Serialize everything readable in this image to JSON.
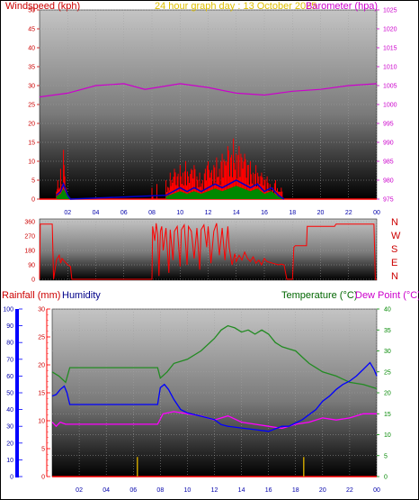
{
  "header": {
    "windspeed_label": "Windspeed (kph)",
    "graph_title": "24 hour graph day : 13 October 2025",
    "barometer_label": "Barometer (hpa)",
    "rainfall_label": "Rainfall (mm)",
    "humidity_label": "Humidity",
    "temperature_label": "Temperature (°C)",
    "dewpoint_label": "Dew Point (°C)"
  },
  "colors": {
    "wind": "#ff0000",
    "gust": "#ff0000",
    "baro": "#cc00cc",
    "avg_wind": "#0000cc",
    "wind_green": "#008800",
    "direction": "#ff0000",
    "temperature": "#228b22",
    "humidity": "#0000ff",
    "dewpoint": "#ff00ff",
    "rain_bar": "#c8a000",
    "rain_axis_text": "#ff0000",
    "humidity_axis_text": "#0000aa",
    "temp_axis_text": "#008800",
    "baro_axis_text": "#cc00cc",
    "title_text": "#e0c000"
  },
  "chart_data": [
    {
      "type": "bar",
      "name": "wind",
      "x_ticks": [
        "02",
        "04",
        "06",
        "08",
        "10",
        "12",
        "14",
        "16",
        "18",
        "20",
        "22",
        "00"
      ],
      "y_left_ticks": [
        "0",
        "5",
        "10",
        "15",
        "20",
        "25",
        "30",
        "35",
        "40",
        "45",
        "50"
      ],
      "y_right_ticks": [
        "975",
        "980",
        "985",
        "990",
        "995",
        "1000",
        "1005",
        "1010",
        "1015",
        "1020",
        "1025"
      ],
      "ylim_left": [
        0,
        50
      ],
      "ylim_right": [
        975,
        1025
      ],
      "x_range_hours": [
        0,
        24
      ],
      "gust_kph": [
        [
          0,
          0
        ],
        [
          1.0,
          0
        ],
        [
          1.2,
          2
        ],
        [
          1.3,
          5
        ],
        [
          1.4,
          3
        ],
        [
          1.5,
          8
        ],
        [
          1.6,
          4
        ],
        [
          1.7,
          13
        ],
        [
          1.75,
          9
        ],
        [
          1.8,
          6
        ],
        [
          1.9,
          3
        ],
        [
          2.0,
          1
        ],
        [
          2.2,
          0
        ],
        [
          2.5,
          0
        ],
        [
          7.9,
          0
        ],
        [
          8.0,
          3
        ],
        [
          8.1,
          0
        ],
        [
          8.3,
          0
        ],
        [
          8.35,
          4
        ],
        [
          8.4,
          0
        ],
        [
          8.9,
          0
        ],
        [
          9.0,
          5
        ],
        [
          9.2,
          3
        ],
        [
          9.3,
          7
        ],
        [
          9.4,
          5
        ],
        [
          9.6,
          8
        ],
        [
          9.8,
          6
        ],
        [
          10.0,
          9
        ],
        [
          10.2,
          7
        ],
        [
          10.4,
          10
        ],
        [
          10.6,
          6
        ],
        [
          10.8,
          8
        ],
        [
          11.0,
          9
        ],
        [
          11.2,
          6
        ],
        [
          11.4,
          7
        ],
        [
          11.6,
          5
        ],
        [
          11.8,
          8
        ],
        [
          12.0,
          10
        ],
        [
          12.2,
          7
        ],
        [
          12.4,
          9
        ],
        [
          12.6,
          11
        ],
        [
          12.8,
          8
        ],
        [
          13.0,
          12
        ],
        [
          13.2,
          10
        ],
        [
          13.4,
          14
        ],
        [
          13.6,
          11
        ],
        [
          13.8,
          16
        ],
        [
          14.0,
          12
        ],
        [
          14.2,
          14
        ],
        [
          14.4,
          11
        ],
        [
          14.6,
          12
        ],
        [
          14.8,
          9
        ],
        [
          15.0,
          10
        ],
        [
          15.2,
          7
        ],
        [
          15.4,
          9
        ],
        [
          15.6,
          6
        ],
        [
          15.8,
          7
        ],
        [
          16.0,
          5
        ],
        [
          16.2,
          6
        ],
        [
          16.4,
          4
        ],
        [
          16.6,
          3
        ],
        [
          16.8,
          5
        ],
        [
          17.0,
          2
        ],
        [
          17.2,
          3
        ],
        [
          17.4,
          0
        ],
        [
          17.6,
          0
        ],
        [
          24,
          0
        ]
      ],
      "avg_kph": [
        [
          1.2,
          1
        ],
        [
          1.5,
          2
        ],
        [
          1.7,
          4
        ],
        [
          1.8,
          3
        ],
        [
          2.0,
          1
        ],
        [
          2.2,
          0
        ],
        [
          9.0,
          1
        ],
        [
          9.5,
          2
        ],
        [
          10.0,
          3
        ],
        [
          10.5,
          2
        ],
        [
          11.0,
          3
        ],
        [
          11.5,
          2
        ],
        [
          12.0,
          3
        ],
        [
          12.5,
          4
        ],
        [
          13.0,
          3
        ],
        [
          13.5,
          4
        ],
        [
          14.0,
          5
        ],
        [
          14.5,
          4
        ],
        [
          15.0,
          3
        ],
        [
          15.5,
          4
        ],
        [
          16.0,
          2
        ],
        [
          16.5,
          3
        ],
        [
          17.0,
          1
        ],
        [
          17.4,
          0
        ]
      ],
      "barometer_hpa": [
        [
          0,
          1002
        ],
        [
          2,
          1003
        ],
        [
          4,
          1005
        ],
        [
          6,
          1005.5
        ],
        [
          7.5,
          1004
        ],
        [
          10,
          1005.5
        ],
        [
          12,
          1004.5
        ],
        [
          14,
          1003
        ],
        [
          16,
          1002.5
        ],
        [
          18,
          1003.5
        ],
        [
          20,
          1004
        ],
        [
          22,
          1005
        ],
        [
          24,
          1005.5
        ]
      ]
    },
    {
      "type": "line",
      "name": "wind_direction",
      "y_ticks": [
        "0",
        "90",
        "180",
        "270",
        "360"
      ],
      "right_labels": [
        "N",
        "W",
        "S",
        "E",
        "N"
      ],
      "ylim": [
        0,
        360
      ],
      "direction_deg": [
        [
          0,
          0
        ],
        [
          0.05,
          345
        ],
        [
          0.9,
          345
        ],
        [
          1.0,
          0
        ],
        [
          1.2,
          120
        ],
        [
          1.4,
          150
        ],
        [
          1.5,
          100
        ],
        [
          1.6,
          130
        ],
        [
          1.8,
          110
        ],
        [
          2.0,
          90
        ],
        [
          2.2,
          80
        ],
        [
          2.3,
          0
        ],
        [
          8.0,
          0
        ],
        [
          8.05,
          330
        ],
        [
          8.2,
          240
        ],
        [
          8.3,
          350
        ],
        [
          8.4,
          280
        ],
        [
          8.5,
          20
        ],
        [
          8.6,
          300
        ],
        [
          8.7,
          330
        ],
        [
          8.8,
          180
        ],
        [
          9.0,
          320
        ],
        [
          9.2,
          40
        ],
        [
          9.3,
          310
        ],
        [
          9.5,
          120
        ],
        [
          9.6,
          300
        ],
        [
          9.8,
          330
        ],
        [
          10.0,
          80
        ],
        [
          10.1,
          310
        ],
        [
          10.3,
          340
        ],
        [
          10.5,
          90
        ],
        [
          10.6,
          330
        ],
        [
          10.8,
          300
        ],
        [
          11.0,
          130
        ],
        [
          11.2,
          320
        ],
        [
          11.4,
          60
        ],
        [
          11.5,
          310
        ],
        [
          11.7,
          340
        ],
        [
          11.9,
          200
        ],
        [
          12.0,
          330
        ],
        [
          12.2,
          100
        ],
        [
          12.4,
          300
        ],
        [
          12.6,
          350
        ],
        [
          12.8,
          150
        ],
        [
          13.0,
          320
        ],
        [
          13.2,
          120
        ],
        [
          13.4,
          330
        ],
        [
          13.5,
          200
        ],
        [
          13.7,
          90
        ],
        [
          13.9,
          160
        ],
        [
          14.0,
          110
        ],
        [
          14.2,
          150
        ],
        [
          14.4,
          120
        ],
        [
          14.6,
          170
        ],
        [
          14.8,
          130
        ],
        [
          15.0,
          110
        ],
        [
          15.2,
          140
        ],
        [
          15.4,
          100
        ],
        [
          15.6,
          120
        ],
        [
          15.8,
          90
        ],
        [
          16.0,
          130
        ],
        [
          16.2,
          110
        ],
        [
          16.6,
          100
        ],
        [
          17.0,
          90
        ],
        [
          17.2,
          95
        ],
        [
          17.4,
          90
        ],
        [
          17.6,
          0
        ],
        [
          18.0,
          0
        ],
        [
          18.1,
          200
        ],
        [
          18.2,
          210
        ],
        [
          19.0,
          210
        ],
        [
          19.05,
          330
        ],
        [
          21.0,
          330
        ],
        [
          21.1,
          345
        ],
        [
          23.8,
          345
        ],
        [
          23.9,
          0
        ],
        [
          24,
          0
        ]
      ]
    },
    {
      "type": "line",
      "name": "temp_hum",
      "x_ticks": [
        "02",
        "04",
        "06",
        "08",
        "10",
        "12",
        "14",
        "16",
        "18",
        "20",
        "22",
        "00"
      ],
      "y_left_humidity_ticks": [
        "0",
        "10",
        "20",
        "30",
        "40",
        "50",
        "60",
        "70",
        "80",
        "90",
        "100"
      ],
      "y_left_rain_ticks": [
        "0",
        "5",
        "10",
        "15",
        "20",
        "25",
        "30"
      ],
      "y_right_temp_ticks": [
        "0",
        "5",
        "10",
        "15",
        "20",
        "25",
        "30",
        "35",
        "40"
      ],
      "humidity_lim": [
        0,
        100
      ],
      "rain_lim": [
        0,
        30
      ],
      "temp_lim": [
        0,
        40
      ],
      "temperature_c": [
        [
          0,
          25
        ],
        [
          0.5,
          24
        ],
        [
          1.0,
          22.5
        ],
        [
          1.3,
          26
        ],
        [
          2,
          26
        ],
        [
          4,
          26
        ],
        [
          6,
          26
        ],
        [
          7.8,
          26
        ],
        [
          8.0,
          23.5
        ],
        [
          8.5,
          25
        ],
        [
          9.0,
          27
        ],
        [
          10.0,
          28
        ],
        [
          11.0,
          30
        ],
        [
          12.0,
          33
        ],
        [
          12.5,
          35
        ],
        [
          13.0,
          36
        ],
        [
          13.5,
          35.5
        ],
        [
          14.0,
          34.5
        ],
        [
          14.5,
          35
        ],
        [
          15.0,
          34
        ],
        [
          15.5,
          35
        ],
        [
          16.0,
          34
        ],
        [
          16.5,
          32
        ],
        [
          17.0,
          31
        ],
        [
          17.5,
          30.5
        ],
        [
          18.0,
          30
        ],
        [
          18.5,
          28.5
        ],
        [
          19.0,
          27
        ],
        [
          19.5,
          26
        ],
        [
          20.0,
          25
        ],
        [
          21.0,
          24
        ],
        [
          22.0,
          22.5
        ],
        [
          23.0,
          22
        ],
        [
          24,
          21
        ]
      ],
      "humidity_pct": [
        [
          0,
          48
        ],
        [
          0.3,
          49
        ],
        [
          0.6,
          52
        ],
        [
          0.9,
          54
        ],
        [
          1.1,
          50
        ],
        [
          1.3,
          43
        ],
        [
          2,
          43
        ],
        [
          4,
          43
        ],
        [
          6,
          43
        ],
        [
          7.8,
          43
        ],
        [
          8.0,
          53
        ],
        [
          8.3,
          55
        ],
        [
          8.6,
          52
        ],
        [
          9.0,
          46
        ],
        [
          9.5,
          40
        ],
        [
          10.0,
          38
        ],
        [
          11.0,
          36
        ],
        [
          12.0,
          34
        ],
        [
          12.5,
          31
        ],
        [
          13.0,
          30
        ],
        [
          14.0,
          29
        ],
        [
          15.0,
          28
        ],
        [
          16.0,
          27
        ],
        [
          17.0,
          30
        ],
        [
          17.5,
          30
        ],
        [
          18.0,
          32
        ],
        [
          18.5,
          34
        ],
        [
          19.0,
          37
        ],
        [
          19.5,
          40
        ],
        [
          20.0,
          45
        ],
        [
          20.5,
          48
        ],
        [
          21.0,
          52
        ],
        [
          21.5,
          55
        ],
        [
          22.0,
          57
        ],
        [
          22.5,
          60
        ],
        [
          23.0,
          64
        ],
        [
          23.5,
          68
        ],
        [
          23.8,
          64
        ],
        [
          24,
          60
        ]
      ],
      "dewpoint_c": [
        [
          0,
          13
        ],
        [
          0.3,
          12
        ],
        [
          0.6,
          13
        ],
        [
          1,
          12.5
        ],
        [
          2,
          12.5
        ],
        [
          4,
          12.5
        ],
        [
          6,
          12.5
        ],
        [
          7.8,
          12.5
        ],
        [
          8.2,
          15
        ],
        [
          9,
          15.5
        ],
        [
          10,
          15
        ],
        [
          11,
          14.5
        ],
        [
          12,
          13.5
        ],
        [
          13,
          14.5
        ],
        [
          14,
          13
        ],
        [
          15,
          12.5
        ],
        [
          16,
          12
        ],
        [
          17,
          11.5
        ],
        [
          18,
          12.5
        ],
        [
          19,
          13
        ],
        [
          20,
          14
        ],
        [
          21,
          13.5
        ],
        [
          22,
          14
        ],
        [
          23,
          15
        ],
        [
          24,
          15
        ]
      ],
      "rainfall_mm": [
        [
          6.3,
          3.5
        ],
        [
          18.6,
          3.5
        ]
      ]
    }
  ]
}
